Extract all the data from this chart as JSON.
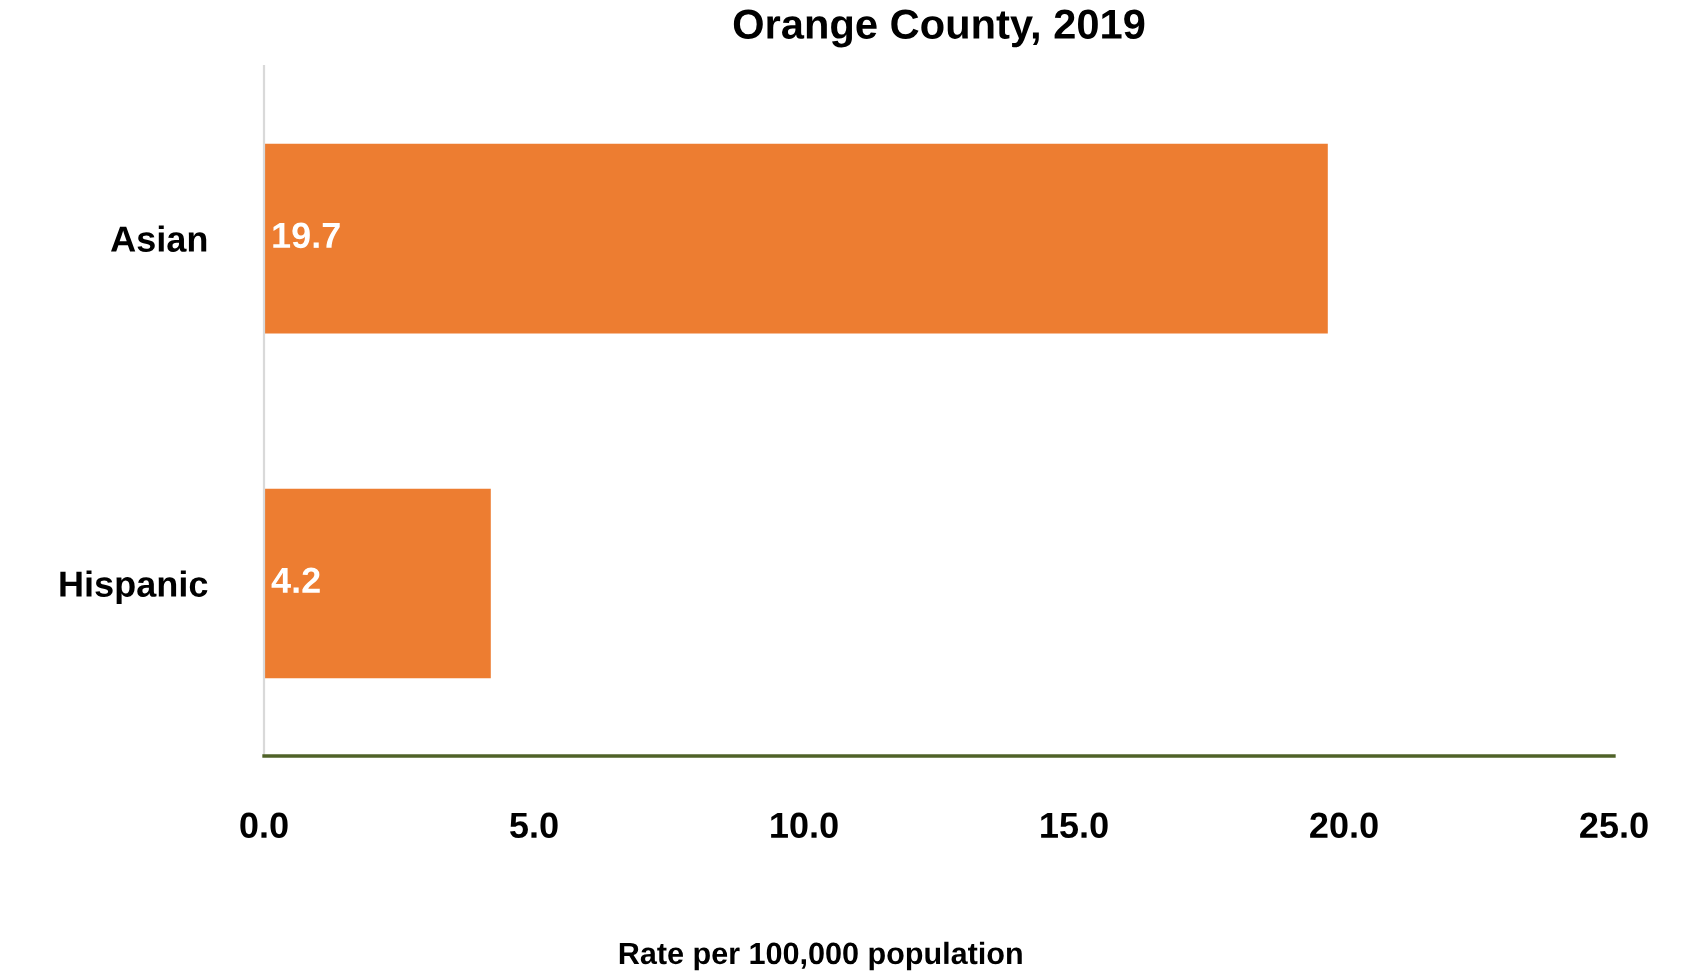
{
  "chart_data": {
    "type": "bar",
    "orientation": "horizontal",
    "title": "Orange County, 2019",
    "xlabel": "Rate per 100,000 population",
    "categories": [
      "Asian",
      "Hispanic"
    ],
    "values": [
      19.7,
      4.2
    ],
    "color": "#ed7d31",
    "data_labels": true,
    "xlim": [
      0,
      25
    ],
    "xticks": [
      {
        "value": 0,
        "label": "0.0"
      },
      {
        "value": 5,
        "label": "5.0"
      },
      {
        "value": 10,
        "label": "10.0"
      },
      {
        "value": 15,
        "label": "15.0"
      },
      {
        "value": 20,
        "label": "20.0"
      },
      {
        "value": 25,
        "label": "25.0"
      }
    ],
    "grid": false,
    "legend": false
  }
}
